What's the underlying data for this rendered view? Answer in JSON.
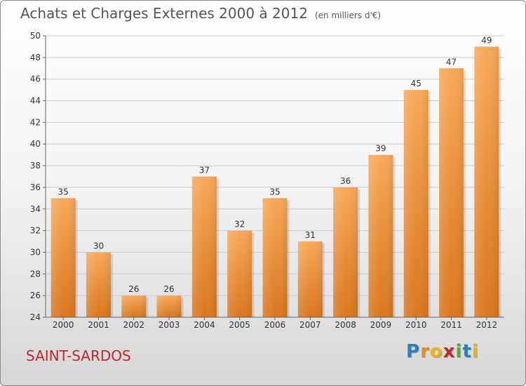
{
  "chart_data": {
    "type": "bar",
    "title": "Achats et Charges Externes 2000 à 2012",
    "unit": "(en milliers d'€)",
    "categories": [
      "2000",
      "2001",
      "2002",
      "2003",
      "2004",
      "2005",
      "2006",
      "2007",
      "2008",
      "2009",
      "2010",
      "2011",
      "2012"
    ],
    "values": [
      35,
      30,
      26,
      26,
      37,
      32,
      35,
      31,
      36,
      39,
      45,
      47,
      49
    ],
    "ylim": [
      24,
      50
    ],
    "yticks": [
      24,
      26,
      28,
      30,
      32,
      34,
      36,
      38,
      40,
      42,
      44,
      46,
      48,
      50
    ],
    "grid": true,
    "xlabel": "",
    "ylabel": ""
  },
  "commune": "SAINT-SARDOS",
  "logo": {
    "letters": [
      "P",
      "r",
      "o",
      "x",
      "i",
      "t",
      "i"
    ],
    "colors": [
      "#2a7fc1",
      "#f08a1c",
      "#e8b21a",
      "#c1272d",
      "#5aa832",
      "#2a7fc1",
      "#e8b21a"
    ]
  },
  "colors": {
    "bar_light": "#f8a858",
    "bar_dark": "#d9761e",
    "grid": "#cccccc",
    "axis": "#666666"
  }
}
